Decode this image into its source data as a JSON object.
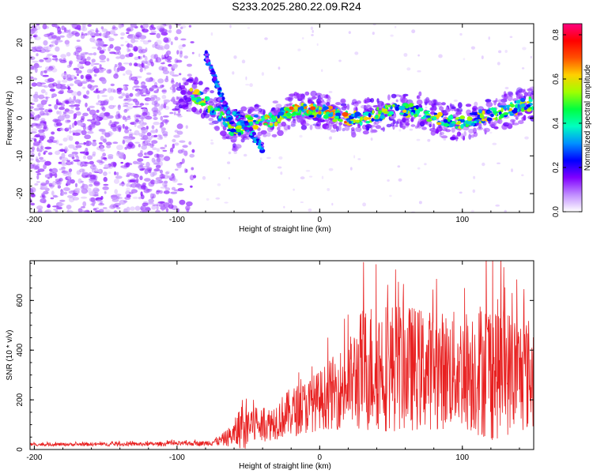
{
  "title": "S233.2025.280.22.09.R24",
  "chart_data": [
    {
      "type": "heatmap",
      "title": "S233.2025.280.22.09.R24",
      "xlabel": "Height of straight line (km)",
      "ylabel": "Frequency (Hz)",
      "xlim": [
        -203,
        150
      ],
      "ylim": [
        -25,
        25
      ],
      "x_ticks": [
        -200,
        -100,
        0,
        100
      ],
      "y_ticks": [
        -20,
        -10,
        0,
        10,
        20
      ],
      "colorbar": {
        "label": "Normalized spectral amplitude",
        "range": [
          0.0,
          0.85
        ],
        "ticks": [
          "0.0",
          "0.2",
          "0.4",
          "0.6",
          "0.8"
        ],
        "colors": [
          "#ffffff",
          "#c08cff",
          "#8000ff",
          "#0000ff",
          "#0090ff",
          "#00ffc0",
          "#00ff40",
          "#a0ff00",
          "#ffd000",
          "#ff5000",
          "#ff0000",
          "#ff0080"
        ]
      },
      "ridge": {
        "x": [
          -100,
          -90,
          -80,
          -70,
          -60,
          -50,
          -40,
          -30,
          -20,
          -10,
          0,
          10,
          20,
          30,
          40,
          50,
          60,
          70,
          80,
          90,
          100,
          110,
          120,
          130,
          140,
          150
        ],
        "y": [
          7,
          7,
          4,
          1,
          -4,
          -1,
          -1,
          0,
          2,
          2,
          2,
          1,
          0,
          0,
          1,
          2,
          2,
          2,
          0,
          -1,
          -1,
          0,
          1,
          2,
          3,
          4
        ]
      }
    },
    {
      "type": "line",
      "xlabel": "Height of straight line (km)",
      "ylabel": "SNR (10 * v/v)",
      "xlim": [
        -203,
        150
      ],
      "ylim": [
        0,
        760
      ],
      "x_ticks": [
        -200,
        -100,
        0,
        100
      ],
      "y_ticks": [
        0,
        200,
        400,
        600
      ],
      "color": "#e82020",
      "envelope": {
        "x": [
          -203,
          -120,
          -80,
          -70,
          -60,
          -55,
          -50,
          -45,
          -40,
          -30,
          -20,
          -10,
          0,
          10,
          20,
          25,
          30,
          40,
          60,
          80,
          100,
          120,
          135,
          150
        ],
        "mean": [
          20,
          22,
          25,
          35,
          60,
          90,
          100,
          110,
          90,
          120,
          150,
          170,
          200,
          230,
          260,
          290,
          320,
          340,
          330,
          320,
          320,
          330,
          310,
          300
        ],
        "amp": [
          6,
          8,
          10,
          20,
          50,
          120,
          110,
          90,
          60,
          80,
          100,
          110,
          120,
          150,
          180,
          220,
          260,
          270,
          260,
          240,
          240,
          300,
          250,
          230
        ]
      }
    }
  ]
}
